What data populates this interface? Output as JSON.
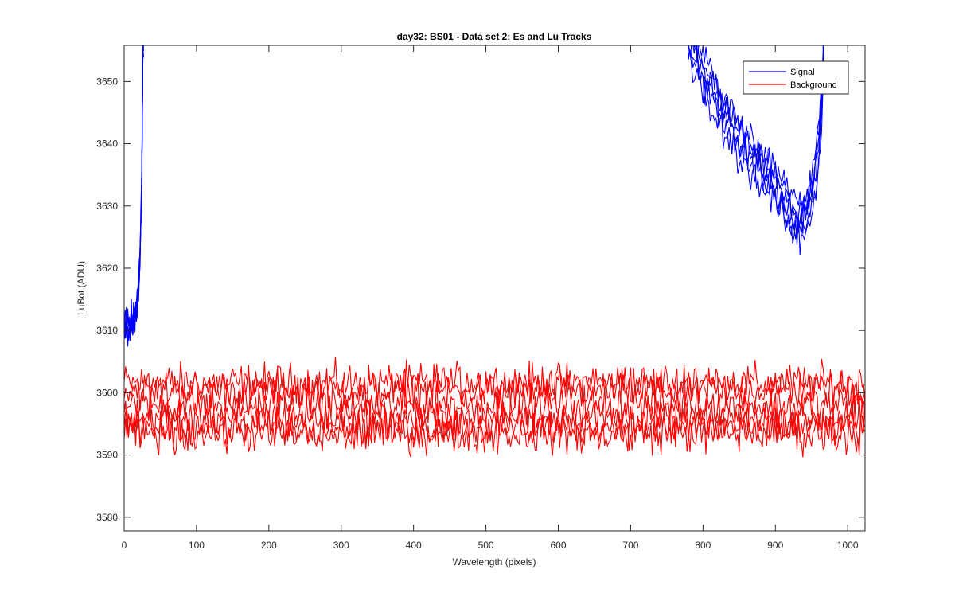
{
  "chart_data": {
    "type": "line",
    "title": "day32: BS01 - Data set 2: Es and Lu Tracks",
    "xlabel": "Wavelength (pixels)",
    "ylabel": "LuBot (ADU)",
    "xlim": [
      0,
      1024
    ],
    "ylim": [
      3577.8,
      3655.8
    ],
    "xticks": [
      0,
      100,
      200,
      300,
      400,
      500,
      600,
      700,
      800,
      900,
      1000
    ],
    "yticks": [
      3580,
      3590,
      3600,
      3610,
      3620,
      3630,
      3640,
      3650
    ],
    "grid": false,
    "legend_position": "top-right",
    "series": [
      {
        "name": "Signal",
        "color": "#0000ff",
        "traces": 6,
        "points": [
          [
            0,
            3611.5
          ],
          [
            5,
            3609.5
          ],
          [
            10,
            3611
          ],
          [
            15,
            3612
          ],
          [
            18,
            3614
          ],
          [
            20,
            3617
          ],
          [
            22,
            3622
          ],
          [
            24,
            3632
          ],
          [
            25,
            3642
          ],
          [
            26,
            3656
          ],
          [
            780,
            3656
          ],
          [
            800,
            3651
          ],
          [
            820,
            3646
          ],
          [
            840,
            3642
          ],
          [
            860,
            3639
          ],
          [
            880,
            3636
          ],
          [
            900,
            3633
          ],
          [
            920,
            3629
          ],
          [
            930,
            3627
          ],
          [
            940,
            3628
          ],
          [
            950,
            3631
          ],
          [
            955,
            3634
          ],
          [
            960,
            3640
          ],
          [
            965,
            3648
          ],
          [
            968,
            3656
          ]
        ]
      },
      {
        "name": "Background",
        "color": "#ff0000",
        "traces": 6,
        "levels": [
          3601.5,
          3600.5,
          3598.0,
          3596.0,
          3594.5,
          3593.5
        ],
        "range": [
          3587.8,
          3605.8
        ]
      }
    ]
  }
}
